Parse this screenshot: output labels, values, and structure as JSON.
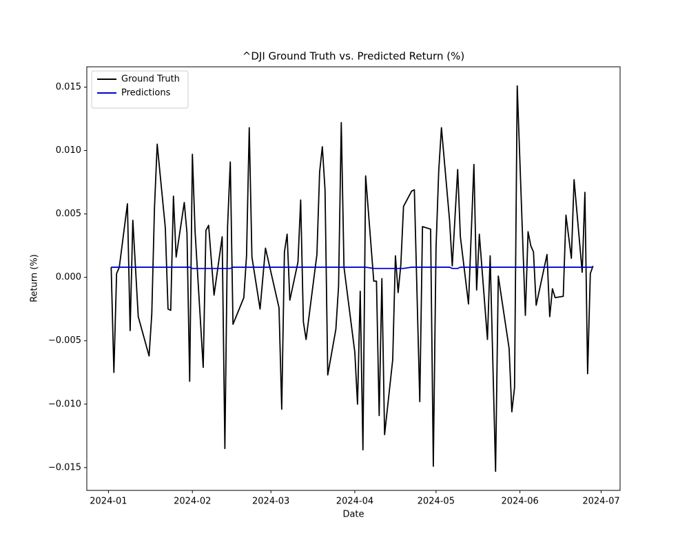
{
  "chart_data": {
    "type": "line",
    "title": "^DJI Ground Truth vs. Predicted Return (%)",
    "x_label": "Date",
    "y_label": "Return (%)",
    "x": [
      "2024-01-02",
      "2024-01-03",
      "2024-01-04",
      "2024-01-05",
      "2024-01-08",
      "2024-01-09",
      "2024-01-10",
      "2024-01-12",
      "2024-01-16",
      "2024-01-17",
      "2024-01-18",
      "2024-01-19",
      "2024-01-22",
      "2024-01-23",
      "2024-01-24",
      "2024-01-25",
      "2024-01-26",
      "2024-01-29",
      "2024-01-30",
      "2024-01-31",
      "2024-02-01",
      "2024-02-02",
      "2024-02-05",
      "2024-02-06",
      "2024-02-07",
      "2024-02-09",
      "2024-02-12",
      "2024-02-13",
      "2024-02-14",
      "2024-02-15",
      "2024-02-16",
      "2024-02-20",
      "2024-02-21",
      "2024-02-22",
      "2024-02-23",
      "2024-02-26",
      "2024-02-28",
      "2024-03-04",
      "2024-03-05",
      "2024-03-06",
      "2024-03-07",
      "2024-03-08",
      "2024-03-11",
      "2024-03-12",
      "2024-03-13",
      "2024-03-14",
      "2024-03-18",
      "2024-03-19",
      "2024-03-20",
      "2024-03-21",
      "2024-03-22",
      "2024-03-25",
      "2024-03-26",
      "2024-03-27",
      "2024-03-28",
      "2024-04-01",
      "2024-04-02",
      "2024-04-03",
      "2024-04-04",
      "2024-04-05",
      "2024-04-08",
      "2024-04-09",
      "2024-04-10",
      "2024-04-11",
      "2024-04-12",
      "2024-04-15",
      "2024-04-16",
      "2024-04-17",
      "2024-04-18",
      "2024-04-19",
      "2024-04-22",
      "2024-04-23",
      "2024-04-25",
      "2024-04-26",
      "2024-04-29",
      "2024-04-30",
      "2024-05-01",
      "2024-05-02",
      "2024-05-03",
      "2024-05-06",
      "2024-05-07",
      "2024-05-09",
      "2024-05-10",
      "2024-05-13",
      "2024-05-15",
      "2024-05-16",
      "2024-05-17",
      "2024-05-20",
      "2024-05-21",
      "2024-05-23",
      "2024-05-24",
      "2024-05-28",
      "2024-05-29",
      "2024-05-30",
      "2024-05-31",
      "2024-06-03",
      "2024-06-04",
      "2024-06-05",
      "2024-06-06",
      "2024-06-07",
      "2024-06-11",
      "2024-06-12",
      "2024-06-13",
      "2024-06-14",
      "2024-06-17",
      "2024-06-18",
      "2024-06-20",
      "2024-06-21",
      "2024-06-24",
      "2024-06-25",
      "2024-06-26",
      "2024-06-27",
      "2024-06-28"
    ],
    "series": [
      {
        "name": "Ground Truth",
        "color": "#000000",
        "values": [
          0.0008,
          -0.0075,
          0.0003,
          0.0008,
          0.0058,
          -0.0042,
          0.0045,
          -0.0031,
          -0.0062,
          -0.0029,
          0.0055,
          0.0105,
          0.0039,
          -0.0025,
          -0.0026,
          0.0064,
          0.0016,
          0.0059,
          0.0035,
          -0.0082,
          0.0097,
          0.0036,
          -0.0071,
          0.0037,
          0.0041,
          -0.0014,
          0.0032,
          -0.0135,
          0.004,
          0.0091,
          -0.0037,
          -0.0016,
          0.0017,
          0.0118,
          0.0016,
          -0.0025,
          0.0023,
          -0.0024,
          -0.0104,
          0.002,
          0.0034,
          -0.0018,
          0.0012,
          0.0061,
          -0.0035,
          -0.0049,
          0.0018,
          0.0083,
          0.0103,
          0.0069,
          -0.0077,
          -0.0041,
          -0.0007,
          0.0122,
          0.0008,
          -0.0059,
          -0.01,
          -0.0011,
          -0.0136,
          0.008,
          -0.0003,
          -0.0003,
          -0.0109,
          -0.0001,
          -0.0124,
          -0.0065,
          0.0017,
          -0.0012,
          0.001,
          0.0056,
          0.0068,
          0.0069,
          -0.0098,
          0.004,
          0.0038,
          -0.0149,
          0.0023,
          0.0084,
          0.0118,
          0.0045,
          0.0009,
          0.0085,
          0.0032,
          -0.0021,
          0.0089,
          -0.001,
          0.0034,
          -0.0049,
          0.0017,
          -0.0153,
          0.0001,
          -0.0056,
          -0.0106,
          -0.0087,
          0.0151,
          -0.003,
          0.0036,
          0.0025,
          0.002,
          -0.0022,
          0.0018,
          -0.0031,
          -0.0009,
          -0.0016,
          -0.0015,
          0.0049,
          0.0015,
          0.0077,
          0.0004,
          0.0067,
          -0.0076,
          0.0003,
          0.0009
        ]
      },
      {
        "name": "Predictions",
        "color": "#0000cc",
        "values": [
          0.0008,
          0.0008,
          0.0008,
          0.0008,
          0.0008,
          0.0008,
          0.0008,
          0.0008,
          0.0008,
          0.0008,
          0.0008,
          0.0008,
          0.0008,
          0.0008,
          0.0008,
          0.0008,
          0.0008,
          0.0008,
          0.0008,
          0.0008,
          0.0007,
          0.0007,
          0.0007,
          0.0007,
          0.0007,
          0.0007,
          0.0007,
          0.0007,
          0.0007,
          0.0007,
          0.0008,
          0.0008,
          0.0008,
          0.0008,
          0.0008,
          0.0008,
          0.0008,
          0.0008,
          0.0008,
          0.0008,
          0.0008,
          0.0008,
          0.0008,
          0.0008,
          0.0008,
          0.0008,
          0.0008,
          0.0008,
          0.0008,
          0.0008,
          0.0008,
          0.0008,
          0.0008,
          0.0008,
          0.0008,
          0.0008,
          0.0008,
          0.0008,
          0.0008,
          0.0008,
          0.0007,
          0.0007,
          0.0007,
          0.0007,
          0.0007,
          0.0007,
          0.0007,
          0.0007,
          0.0007,
          0.0007,
          0.0008,
          0.0008,
          0.0008,
          0.0008,
          0.0008,
          0.0008,
          0.0008,
          0.0008,
          0.0008,
          0.0008,
          0.0007,
          0.0007,
          0.0008,
          0.0008,
          0.0008,
          0.0008,
          0.0008,
          0.0008,
          0.0008,
          0.0008,
          0.0008,
          0.0008,
          0.0008,
          0.0008,
          0.0008,
          0.0008,
          0.0008,
          0.0008,
          0.0008,
          0.0008,
          0.0008,
          0.0008,
          0.0008,
          0.0008,
          0.0008,
          0.0008,
          0.0008,
          0.0008,
          0.0008,
          0.0008,
          0.0008,
          0.0008,
          0.0008
        ]
      }
    ],
    "xlim": [
      "2023-12-24",
      "2024-07-08"
    ],
    "xticks": [
      {
        "value": "2024-01-01",
        "label": "2024-01"
      },
      {
        "value": "2024-02-01",
        "label": "2024-02"
      },
      {
        "value": "2024-03-01",
        "label": "2024-03"
      },
      {
        "value": "2024-04-01",
        "label": "2024-04"
      },
      {
        "value": "2024-05-01",
        "label": "2024-05"
      },
      {
        "value": "2024-06-01",
        "label": "2024-06"
      },
      {
        "value": "2024-07-01",
        "label": "2024-07"
      }
    ],
    "ylim": [
      -0.0168,
      0.0166
    ],
    "yticks": [
      {
        "value": -0.015,
        "label": "−0.015"
      },
      {
        "value": -0.01,
        "label": "−0.010"
      },
      {
        "value": -0.005,
        "label": "−0.005"
      },
      {
        "value": 0,
        "label": "0.000"
      },
      {
        "value": 0.005,
        "label": "0.005"
      },
      {
        "value": 0.01,
        "label": "0.010"
      },
      {
        "value": 0.015,
        "label": "0.015"
      }
    ],
    "legend": "upper left",
    "grid": false
  }
}
